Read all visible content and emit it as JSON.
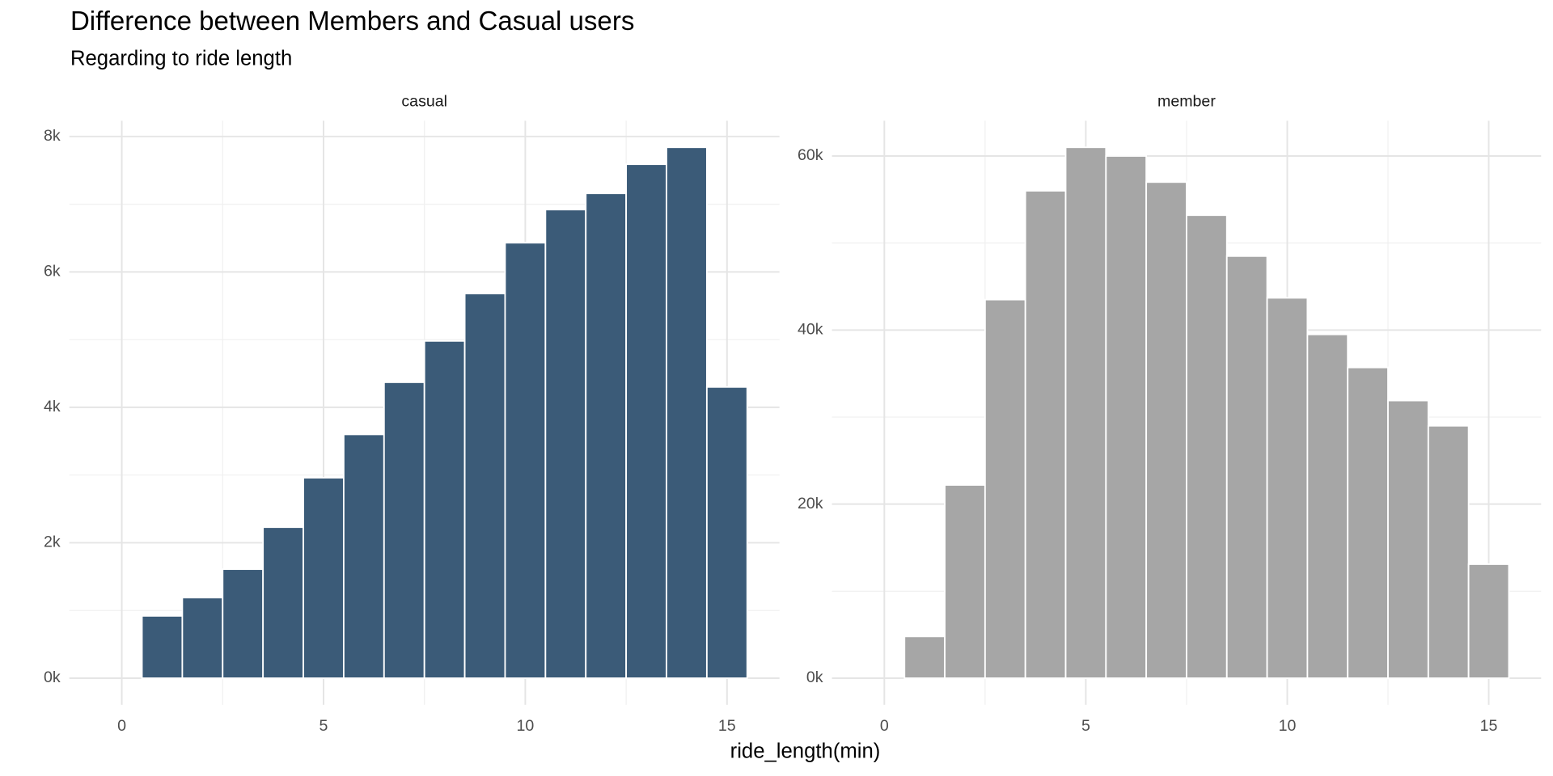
{
  "page": {
    "title": "Difference between Members and Casual users",
    "subtitle": "Regarding to ride length",
    "xlabel": "ride_length(min)"
  },
  "chart_data": [
    {
      "type": "histogram",
      "title": "casual",
      "color": "#3b5b78",
      "grid": true,
      "bins": [
        -0.5,
        0.5,
        1.5,
        2.5,
        3.5,
        4.5,
        5.5,
        6.5,
        7.5,
        8.5,
        9.5,
        10.5,
        11.5,
        12.5,
        13.5,
        14.5,
        15.5
      ],
      "values": [
        0,
        920,
        1190,
        1610,
        2230,
        2960,
        3600,
        4370,
        4980,
        5680,
        6430,
        6920,
        7160,
        7590,
        7840,
        4300
      ],
      "xlim": [
        -1.3,
        16.3
      ],
      "xticks": [
        0,
        5,
        10,
        15
      ],
      "xminor": [
        2.5,
        7.5,
        12.5
      ],
      "ylim": [
        -392,
        8232
      ],
      "yticks": [
        {
          "value": 0,
          "label": "0k"
        },
        {
          "value": 2000,
          "label": "2k"
        },
        {
          "value": 4000,
          "label": "4k"
        },
        {
          "value": 6000,
          "label": "6k"
        },
        {
          "value": 8000,
          "label": "8k"
        }
      ],
      "yminor": [
        1000,
        3000,
        5000,
        7000
      ]
    },
    {
      "type": "histogram",
      "title": "member",
      "color": "#a6a6a6",
      "grid": true,
      "bins": [
        -0.5,
        0.5,
        1.5,
        2.5,
        3.5,
        4.5,
        5.5,
        6.5,
        7.5,
        8.5,
        9.5,
        10.5,
        11.5,
        12.5,
        13.5,
        14.5,
        15.5
      ],
      "values": [
        0,
        4800,
        22200,
        43500,
        56000,
        61000,
        60000,
        57000,
        53200,
        48500,
        43700,
        39500,
        35700,
        31900,
        29000,
        13100
      ],
      "xlim": [
        -1.3,
        16.3
      ],
      "xticks": [
        0,
        5,
        10,
        15
      ],
      "xminor": [
        2.5,
        7.5,
        12.5
      ],
      "ylim": [
        -3050,
        64050
      ],
      "yticks": [
        {
          "value": 0,
          "label": "0k"
        },
        {
          "value": 20000,
          "label": "20k"
        },
        {
          "value": 40000,
          "label": "40k"
        },
        {
          "value": 60000,
          "label": "60k"
        }
      ],
      "yminor": [
        10000,
        30000,
        50000
      ]
    }
  ]
}
